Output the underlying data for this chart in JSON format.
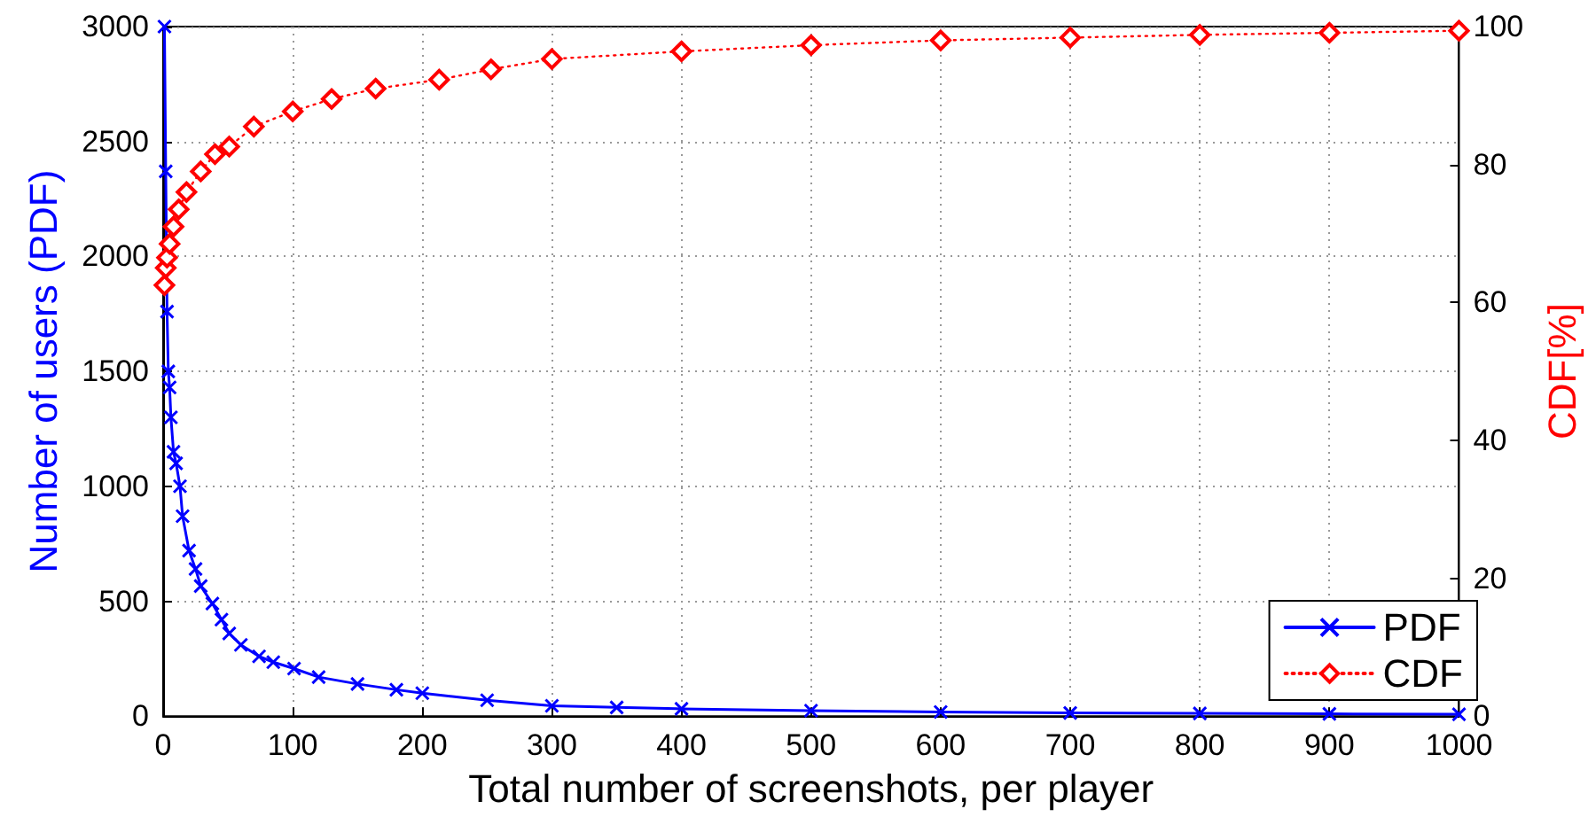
{
  "chart_data": {
    "type": "line",
    "xlabel": "Total number of screenshots, per player",
    "ylabel": "Number of users (PDF)",
    "y2label": "CDF[%]",
    "xlim": [
      0,
      1000
    ],
    "xticks": [
      0,
      100,
      200,
      300,
      400,
      500,
      600,
      700,
      800,
      900,
      1000
    ],
    "ylim": [
      0,
      3000
    ],
    "yticks": [
      0,
      500,
      1000,
      1500,
      2000,
      2500,
      3000
    ],
    "y2lim": [
      0,
      100
    ],
    "y2ticks": [
      0,
      20,
      40,
      60,
      80,
      100
    ],
    "grid": true,
    "legend": "bottom right",
    "series": [
      {
        "name": "PDF",
        "color": "#0000ff",
        "marker": "cross",
        "line_style": "solid",
        "x": [
          1,
          2,
          3,
          4,
          5,
          6,
          8,
          10,
          13,
          15,
          20,
          25,
          29,
          38,
          45,
          51,
          60,
          74,
          85,
          101,
          120,
          150,
          180,
          200,
          250,
          300,
          350,
          400,
          500,
          600,
          700,
          800,
          900,
          1000
        ],
        "values": [
          3000,
          2370,
          1760,
          1500,
          1430,
          1300,
          1150,
          1100,
          1000,
          870,
          720,
          640,
          566,
          490,
          420,
          360,
          310,
          260,
          235,
          207,
          170,
          140,
          115,
          100,
          69,
          45,
          38,
          32,
          24,
          18,
          14,
          12,
          10,
          8
        ]
      },
      {
        "name": "CDF",
        "color": "#ff0000",
        "marker": "diamond",
        "line_style": "dotted",
        "axis": "y2",
        "x": [
          1,
          2,
          3,
          5,
          8,
          12,
          18,
          29,
          40,
          51,
          70,
          100,
          130,
          164,
          213,
          253,
          300,
          400,
          500,
          600,
          700,
          800,
          900,
          1000
        ],
        "values": [
          62.5,
          65,
          66.5,
          68.5,
          71,
          73.5,
          76,
          79,
          81.5,
          82.6,
          85.5,
          87.7,
          89.5,
          91,
          92.3,
          93.8,
          95.3,
          96.4,
          97.3,
          98,
          98.4,
          98.8,
          99.1,
          99.4
        ]
      }
    ]
  }
}
